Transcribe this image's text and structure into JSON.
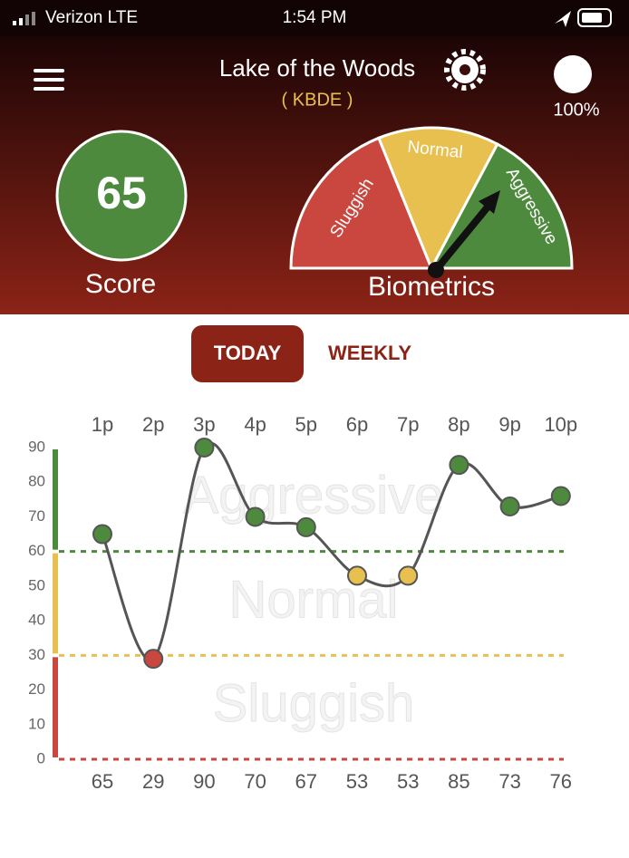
{
  "status_bar": {
    "carrier": "Verizon LTE",
    "time": "1:54 PM"
  },
  "header": {
    "title": "Lake of the Woods",
    "subtitle": "( KBDE )",
    "battery": "100%"
  },
  "score": {
    "value": 65,
    "label": "Score"
  },
  "gauge": {
    "title": "Biometrics",
    "segments": [
      "Sluggish",
      "Normal",
      "Aggressive"
    ]
  },
  "tabs": [
    "TODAY",
    "WEEKLY"
  ],
  "chart_data": {
    "type": "line",
    "categories": [
      "1p",
      "2p",
      "3p",
      "4p",
      "5p",
      "6p",
      "7p",
      "8p",
      "9p",
      "10p"
    ],
    "values": [
      65,
      29,
      90,
      70,
      67,
      53,
      53,
      85,
      73,
      76
    ],
    "ylim": [
      0,
      90
    ],
    "yticks": [
      0,
      10,
      20,
      30,
      40,
      50,
      60,
      70,
      80,
      90
    ],
    "line_color": "#555555",
    "zones": [
      {
        "name": "Aggressive",
        "from": 60,
        "to": 90,
        "color": "#4e8a3e"
      },
      {
        "name": "Normal",
        "from": 30,
        "to": 60,
        "color": "#e8c04f"
      },
      {
        "name": "Sluggish",
        "from": 0,
        "to": 30,
        "color": "#c9473f"
      }
    ]
  }
}
